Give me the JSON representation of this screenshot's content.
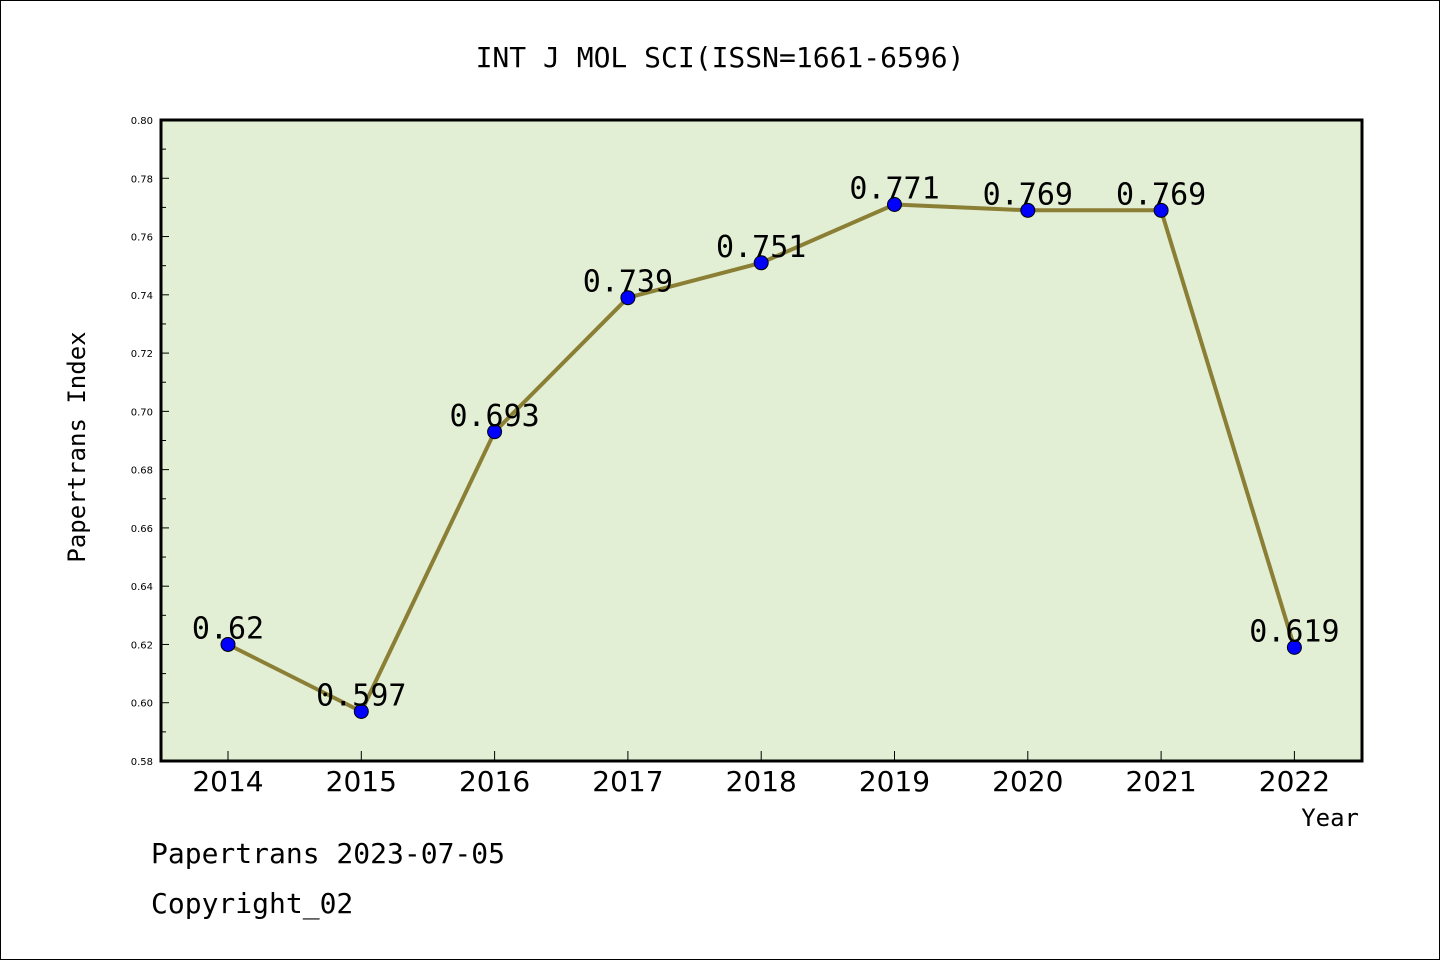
{
  "chart_data": {
    "type": "line",
    "title": "INT J MOL SCI(ISSN=1661-6596)",
    "xlabel": "Year",
    "ylabel": "Papertrans Index",
    "x": [
      "2014",
      "2015",
      "2016",
      "2017",
      "2018",
      "2019",
      "2020",
      "2021",
      "2022"
    ],
    "values": [
      0.62,
      0.597,
      0.693,
      0.739,
      0.751,
      0.771,
      0.769,
      0.769,
      0.619
    ],
    "data_labels": [
      "0.62",
      "0.597",
      "0.693",
      "0.739",
      "0.751",
      "0.771",
      "0.769",
      "0.769",
      "0.619"
    ],
    "ylim": [
      0.58,
      0.8
    ],
    "yticks": [
      "0.58",
      "0.60",
      "0.62",
      "0.64",
      "0.66",
      "0.68",
      "0.70",
      "0.72",
      "0.74",
      "0.76",
      "0.78",
      "0.80"
    ],
    "grid": false,
    "legend": "none",
    "colors": {
      "plot_background": "#e2efd5",
      "line": "#8b7f35",
      "marker": "#0000ff"
    }
  },
  "footer": {
    "source_line": "Papertrans 2023-07-05",
    "copyright": "Copyright_02"
  }
}
